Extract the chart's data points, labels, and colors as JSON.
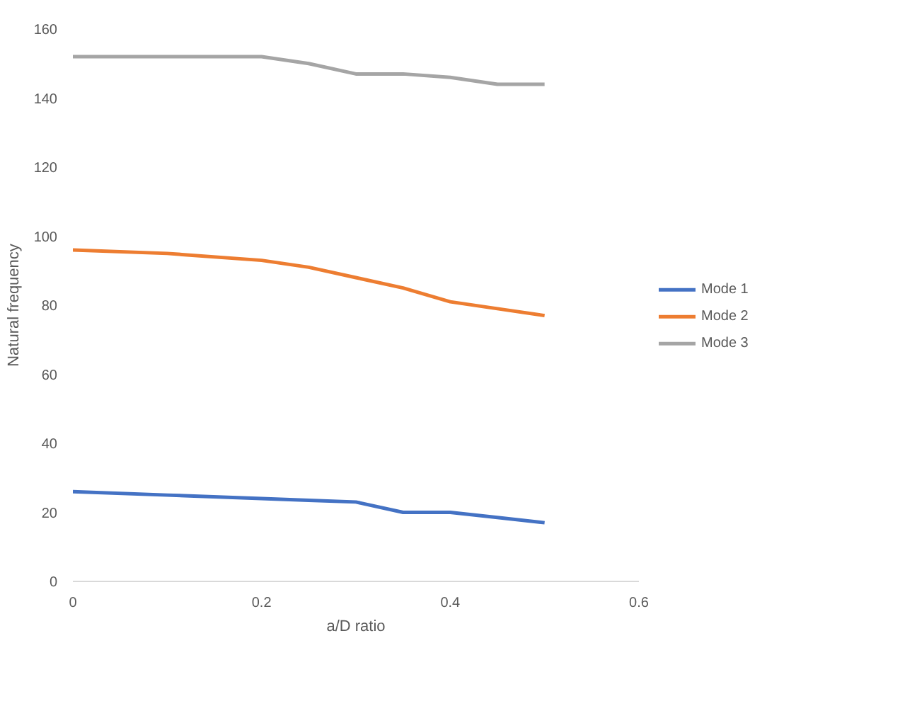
{
  "chart_data": {
    "type": "line",
    "xlabel": "a/D ratio",
    "ylabel": "Natural frequency",
    "x": [
      0,
      0.1,
      0.2,
      0.25,
      0.3,
      0.35,
      0.4,
      0.45,
      0.5
    ],
    "series": [
      {
        "name": "Mode 1",
        "color": "#4472c4",
        "values": [
          26,
          25,
          24,
          23.5,
          23,
          20,
          20,
          18.5,
          17
        ]
      },
      {
        "name": "Mode 2",
        "color": "#ed7d31",
        "values": [
          96,
          95,
          93,
          91,
          88,
          85,
          81,
          79,
          77
        ]
      },
      {
        "name": "Mode 3",
        "color": "#a5a5a5",
        "values": [
          152,
          152,
          152,
          150,
          147,
          147,
          146,
          144,
          144
        ]
      }
    ],
    "xlim": [
      0,
      0.6
    ],
    "xticks": [
      0,
      0.2,
      0.4,
      0.6
    ],
    "ylim": [
      0,
      160
    ],
    "yticks": [
      0,
      20,
      40,
      60,
      80,
      100,
      120,
      140,
      160
    ],
    "grid": false,
    "legend": "right",
    "line_style": "solid",
    "marker": "none"
  }
}
